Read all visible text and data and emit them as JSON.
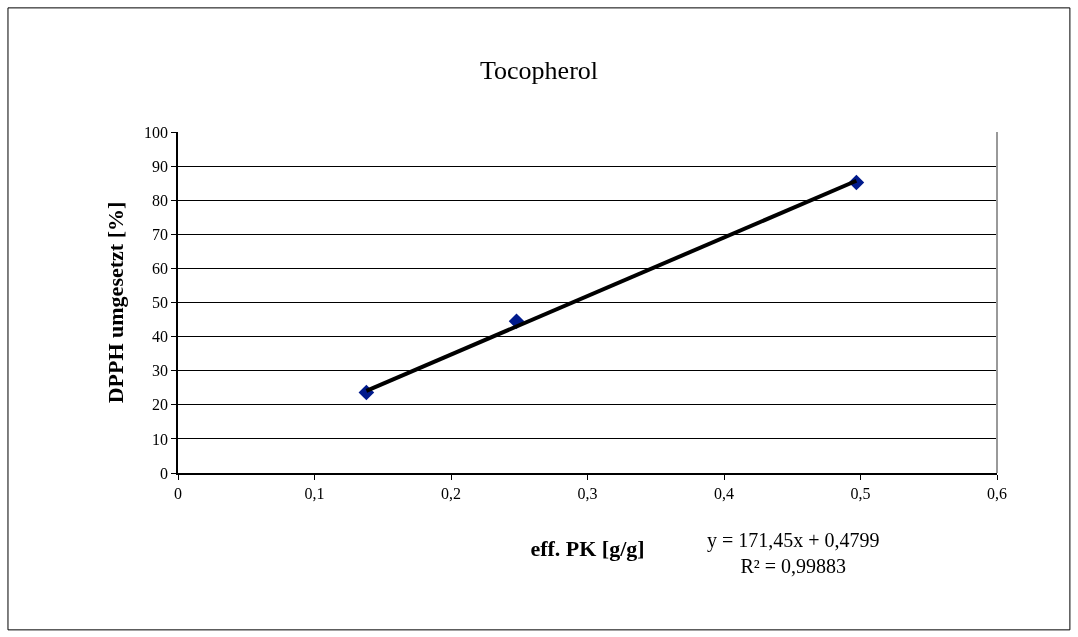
{
  "chart_data": {
    "type": "scatter",
    "title": "Tocopherol",
    "xlabel": "eff. PK [g/g]",
    "ylabel": "DPPH umgesetzt [%]",
    "x": [
      0.138,
      0.248,
      0.497
    ],
    "series": [
      {
        "color": "#001a8c",
        "marker": "diamond",
        "values": [
          23.6,
          44.5,
          85.2
        ]
      },
      {
        "type": "line",
        "color": "#000000",
        "marker": "none",
        "line_style": "solid",
        "x": [
          0.138,
          0.497
        ],
        "values": [
          24.1,
          85.7
        ]
      }
    ],
    "xlim": [
      0,
      0.6
    ],
    "xticks": [
      {
        "value": 0,
        "label": "0"
      },
      {
        "value": 0.1,
        "label": "0,1"
      },
      {
        "value": 0.2,
        "label": "0,2"
      },
      {
        "value": 0.3,
        "label": "0,3"
      },
      {
        "value": 0.4,
        "label": "0,4"
      },
      {
        "value": 0.5,
        "label": "0,5"
      },
      {
        "value": 0.6,
        "label": "0,6"
      }
    ],
    "ylim": [
      0,
      100
    ],
    "yticks": [
      0,
      10,
      20,
      30,
      40,
      50,
      60,
      70,
      80,
      90,
      100
    ],
    "grid": "y",
    "annotations": [
      "y = 171,45x + 0,4799\nR² = 0,99883"
    ]
  }
}
